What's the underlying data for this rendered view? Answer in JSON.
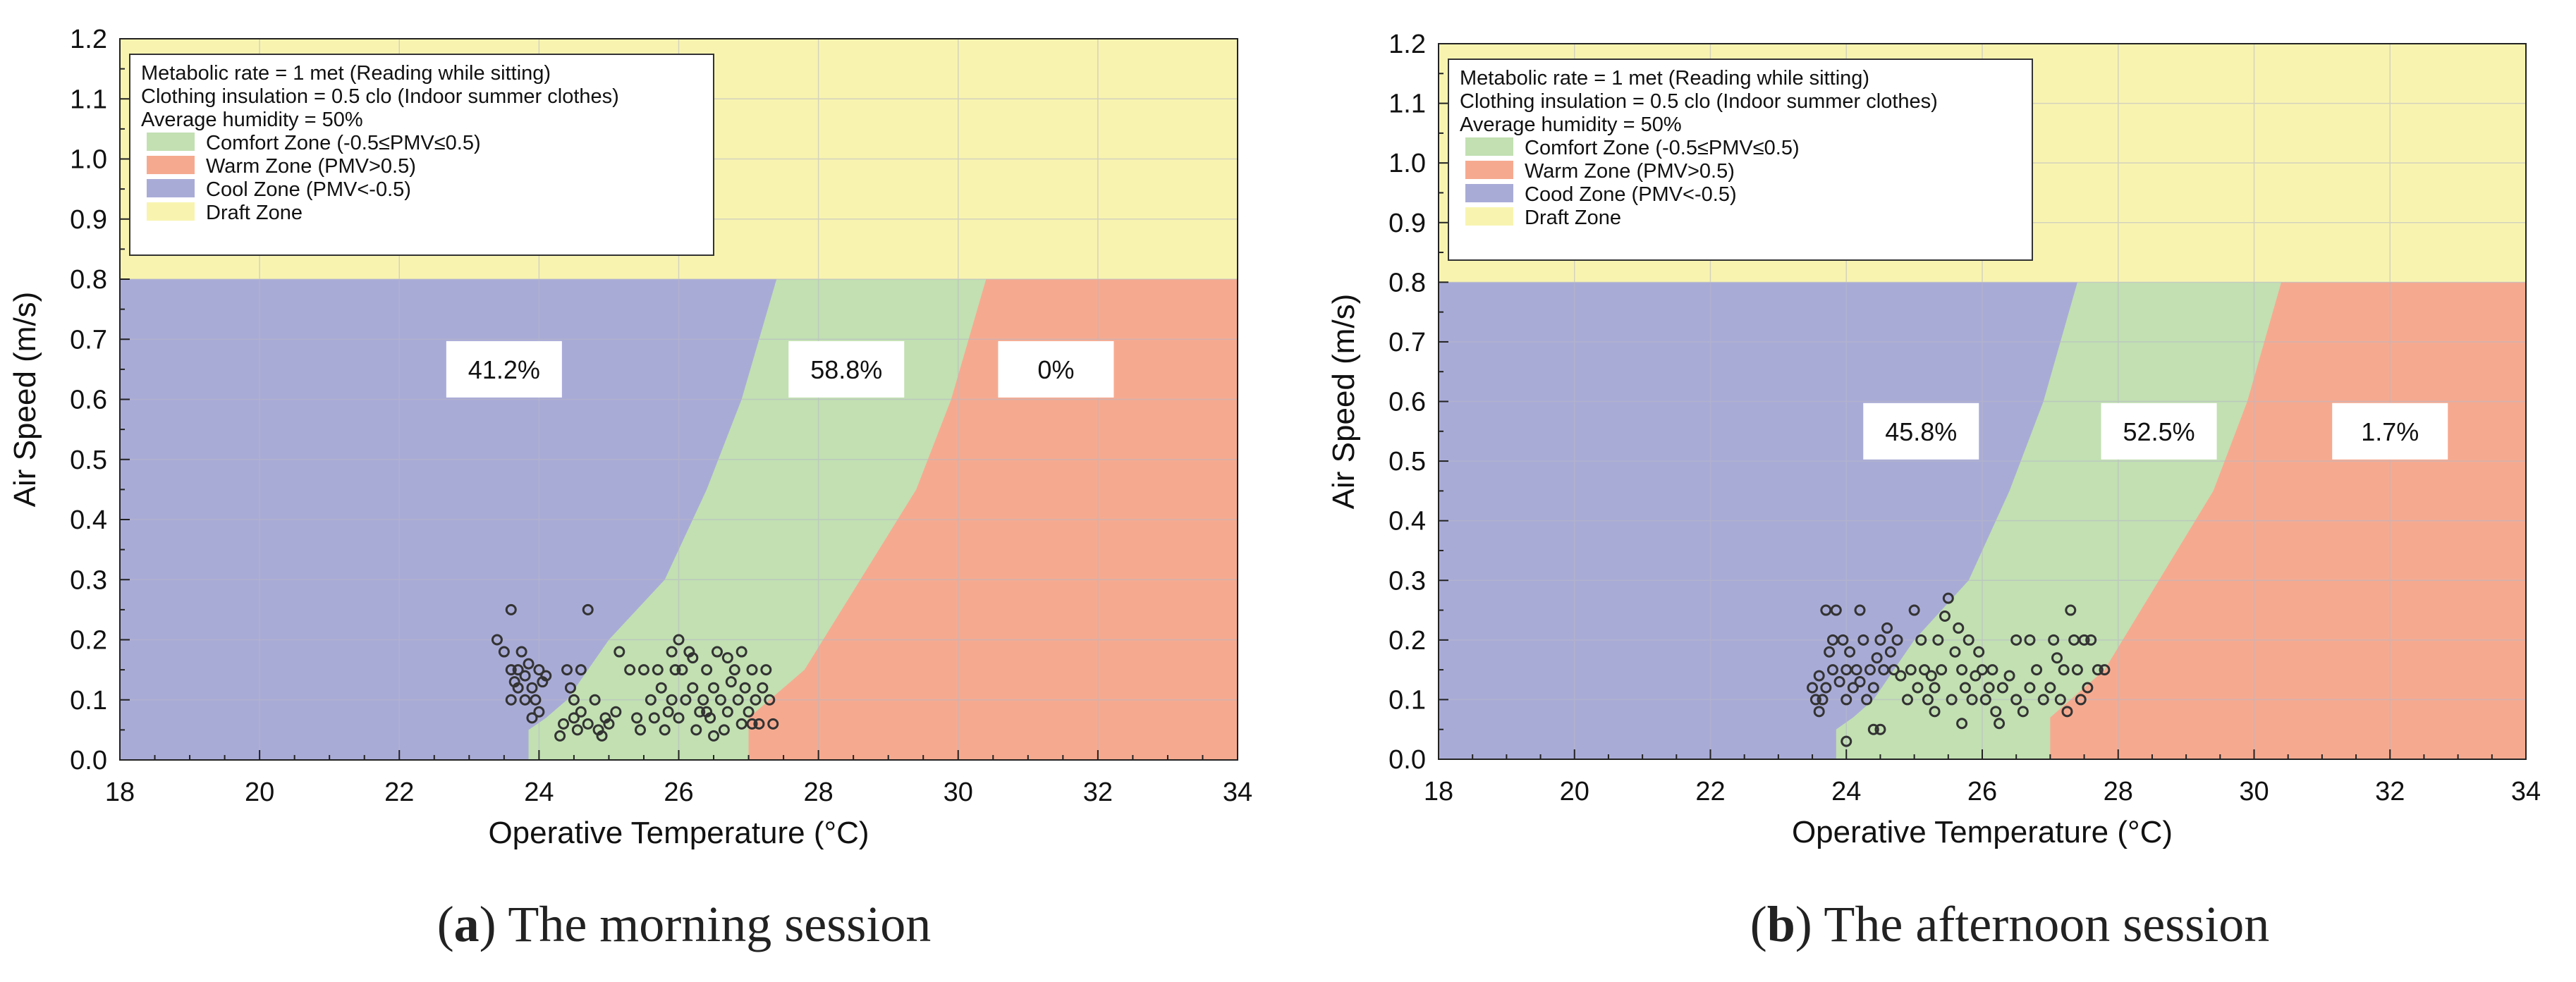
{
  "figure_caption": [
    {
      "letter": "a",
      "open": "(",
      "close": ")",
      "text": " The morning session"
    },
    {
      "letter": "b",
      "open": "(",
      "close": ")",
      "text": " The afternoon session"
    }
  ],
  "colors": {
    "cool": "#a9abd7",
    "comfort": "#c2e0b2",
    "warm": "#f5aa90",
    "draft": "#f8f4b0",
    "grid": "#b8b8c8",
    "point": "#333333"
  },
  "chart_data": [
    {
      "id": "morning",
      "type": "scatter",
      "title": "",
      "xlabel": "Operative Temperature (°C)",
      "ylabel": "Air Speed (m/s)",
      "xlim": [
        18,
        34
      ],
      "ylim": [
        0,
        1.2
      ],
      "xticks": [
        18,
        20,
        22,
        24,
        26,
        28,
        30,
        32,
        34
      ],
      "xtick_labels": [
        "18",
        "20",
        "22",
        "24",
        "26",
        "28",
        "30",
        "32",
        "34"
      ],
      "yticks": [
        0,
        0.1,
        0.2,
        0.3,
        0.4,
        0.5,
        0.6,
        0.7,
        0.8,
        0.9,
        1.0,
        1.1,
        1.2
      ],
      "ytick_labels": [
        "0.0",
        "0.1",
        "0.2",
        "0.3",
        "0.4",
        "0.5",
        "0.6",
        "0.7",
        "0.8",
        "0.9",
        "1.0",
        "1.1",
        "1.2"
      ],
      "grid": true,
      "legend_position": "top-left",
      "legend_notes": [
        "Metabolic rate = 1 met (Reading while sitting)",
        "Clothing insulation = 0.5 clo (Indoor summer clothes)",
        "Average humidity = 50%"
      ],
      "legend": [
        {
          "label": "Comfort Zone (-0.5≤PMV≤0.5)",
          "zone": "comfort"
        },
        {
          "label": "Warm Zone (PMV>0.5)",
          "zone": "warm"
        },
        {
          "label": "Cool Zone (PMV<-0.5)",
          "zone": "cool"
        },
        {
          "label": "Draft Zone",
          "zone": "draft"
        }
      ],
      "zone_limit_speed": 0.8,
      "cool_boundary": [
        [
          23.85,
          0
        ],
        [
          23.85,
          0.05
        ],
        [
          24.1,
          0.07
        ],
        [
          24.4,
          0.1
        ],
        [
          25,
          0.2
        ],
        [
          25.8,
          0.3
        ],
        [
          26.4,
          0.45
        ],
        [
          26.9,
          0.6
        ],
        [
          27.4,
          0.8
        ]
      ],
      "warm_boundary": [
        [
          27,
          0
        ],
        [
          27,
          0.07
        ],
        [
          27.8,
          0.15
        ],
        [
          28.6,
          0.3
        ],
        [
          29.4,
          0.45
        ],
        [
          29.9,
          0.6
        ],
        [
          30.4,
          0.8
        ]
      ],
      "zone_percentages": [
        {
          "label": "41.2%",
          "x": 23.5,
          "y": 0.65
        },
        {
          "label": "58.8%",
          "x": 28.4,
          "y": 0.65
        },
        {
          "label": "0%",
          "x": 31.4,
          "y": 0.65
        }
      ],
      "points": [
        [
          23.4,
          0.2
        ],
        [
          23.5,
          0.18
        ],
        [
          23.6,
          0.25
        ],
        [
          23.6,
          0.15
        ],
        [
          23.6,
          0.1
        ],
        [
          23.65,
          0.13
        ],
        [
          23.7,
          0.15
        ],
        [
          23.7,
          0.12
        ],
        [
          23.75,
          0.18
        ],
        [
          23.8,
          0.1
        ],
        [
          23.8,
          0.14
        ],
        [
          23.85,
          0.16
        ],
        [
          23.9,
          0.12
        ],
        [
          23.9,
          0.07
        ],
        [
          23.95,
          0.1
        ],
        [
          24,
          0.08
        ],
        [
          24,
          0.15
        ],
        [
          24.05,
          0.13
        ],
        [
          24.1,
          0.14
        ],
        [
          24.4,
          0.15
        ],
        [
          24.45,
          0.12
        ],
        [
          24.5,
          0.1
        ],
        [
          24.6,
          0.15
        ],
        [
          24.7,
          0.25
        ],
        [
          24.3,
          0.04
        ],
        [
          24.35,
          0.06
        ],
        [
          24.5,
          0.07
        ],
        [
          24.55,
          0.05
        ],
        [
          24.6,
          0.08
        ],
        [
          24.7,
          0.06
        ],
        [
          24.8,
          0.1
        ],
        [
          24.85,
          0.05
        ],
        [
          24.9,
          0.04
        ],
        [
          24.95,
          0.07
        ],
        [
          25,
          0.06
        ],
        [
          25.1,
          0.08
        ],
        [
          25.15,
          0.18
        ],
        [
          25.3,
          0.15
        ],
        [
          25.4,
          0.07
        ],
        [
          25.45,
          0.05
        ],
        [
          25.5,
          0.15
        ],
        [
          25.6,
          0.1
        ],
        [
          25.65,
          0.07
        ],
        [
          25.7,
          0.15
        ],
        [
          25.75,
          0.12
        ],
        [
          25.8,
          0.05
        ],
        [
          25.85,
          0.08
        ],
        [
          25.9,
          0.1
        ],
        [
          25.95,
          0.15
        ],
        [
          26,
          0.07
        ],
        [
          26,
          0.2
        ],
        [
          26.05,
          0.15
        ],
        [
          26.1,
          0.1
        ],
        [
          26.15,
          0.18
        ],
        [
          26.2,
          0.12
        ],
        [
          26.25,
          0.05
        ],
        [
          26.3,
          0.08
        ],
        [
          26.35,
          0.1
        ],
        [
          26.4,
          0.15
        ],
        [
          26.45,
          0.07
        ],
        [
          26.5,
          0.12
        ],
        [
          26.55,
          0.18
        ],
        [
          26.6,
          0.1
        ],
        [
          26.65,
          0.05
        ],
        [
          26.7,
          0.08
        ],
        [
          26.75,
          0.13
        ],
        [
          26.8,
          0.15
        ],
        [
          26.85,
          0.1
        ],
        [
          26.9,
          0.06
        ],
        [
          26.95,
          0.12
        ],
        [
          27,
          0.08
        ],
        [
          27.05,
          0.15
        ],
        [
          27.1,
          0.1
        ],
        [
          27.15,
          0.06
        ],
        [
          27.2,
          0.12
        ],
        [
          27.25,
          0.15
        ],
        [
          27.3,
          0.1
        ],
        [
          27.35,
          0.06
        ],
        [
          25.9,
          0.18
        ],
        [
          26.2,
          0.17
        ],
        [
          26.4,
          0.08
        ],
        [
          26.5,
          0.04
        ],
        [
          26.7,
          0.17
        ],
        [
          26.9,
          0.18
        ],
        [
          27.05,
          0.06
        ]
      ]
    },
    {
      "id": "afternoon",
      "type": "scatter",
      "title": "",
      "xlabel": "Operative Temperature (°C)",
      "ylabel": "Air Speed (m/s)",
      "xlim": [
        18,
        34
      ],
      "ylim": [
        0,
        1.2
      ],
      "xticks": [
        18,
        20,
        22,
        24,
        26,
        28,
        30,
        32,
        34
      ],
      "xtick_labels": [
        "18",
        "20",
        "22",
        "24",
        "26",
        "28",
        "30",
        "32",
        "34"
      ],
      "yticks": [
        0,
        0.1,
        0.2,
        0.3,
        0.4,
        0.5,
        0.6,
        0.7,
        0.8,
        0.9,
        1.0,
        1.1,
        1.2
      ],
      "ytick_labels": [
        "0.0",
        "0.1",
        "0.2",
        "0.3",
        "0.4",
        "0.5",
        "0.6",
        "0.7",
        "0.8",
        "0.9",
        "1.0",
        "1.1",
        "1.2"
      ],
      "grid": true,
      "legend_position": "top-left",
      "legend_notes": [
        "Metabolic rate = 1 met (Reading while sitting)",
        "Clothing insulation = 0.5 clo (Indoor summer clothes)",
        "Average humidity = 50%"
      ],
      "legend": [
        {
          "label": "Comfort Zone (-0.5≤PMV≤0.5)",
          "zone": "comfort"
        },
        {
          "label": "Warm Zone (PMV>0.5)",
          "zone": "warm"
        },
        {
          "label": "Cood Zone (PMV<-0.5)",
          "zone": "cool"
        },
        {
          "label": "Draft Zone",
          "zone": "draft"
        }
      ],
      "zone_limit_speed": 0.8,
      "cool_boundary": [
        [
          23.85,
          0
        ],
        [
          23.85,
          0.05
        ],
        [
          24.1,
          0.07
        ],
        [
          24.4,
          0.1
        ],
        [
          25,
          0.2
        ],
        [
          25.8,
          0.3
        ],
        [
          26.4,
          0.45
        ],
        [
          26.9,
          0.6
        ],
        [
          27.4,
          0.8
        ]
      ],
      "warm_boundary": [
        [
          27,
          0
        ],
        [
          27,
          0.07
        ],
        [
          27.8,
          0.15
        ],
        [
          28.6,
          0.3
        ],
        [
          29.4,
          0.45
        ],
        [
          29.9,
          0.6
        ],
        [
          30.4,
          0.8
        ]
      ],
      "zone_percentages": [
        {
          "label": "45.8%",
          "x": 25.1,
          "y": 0.55
        },
        {
          "label": "52.5%",
          "x": 28.6,
          "y": 0.55
        },
        {
          "label": "1.7%",
          "x": 32,
          "y": 0.55
        }
      ],
      "points": [
        [
          23.5,
          0.12
        ],
        [
          23.55,
          0.1
        ],
        [
          23.6,
          0.08
        ],
        [
          23.6,
          0.14
        ],
        [
          23.65,
          0.1
        ],
        [
          23.7,
          0.25
        ],
        [
          23.7,
          0.12
        ],
        [
          23.75,
          0.18
        ],
        [
          23.8,
          0.2
        ],
        [
          23.8,
          0.15
        ],
        [
          23.85,
          0.25
        ],
        [
          23.9,
          0.13
        ],
        [
          23.95,
          0.2
        ],
        [
          24,
          0.1
        ],
        [
          24,
          0.15
        ],
        [
          24.05,
          0.18
        ],
        [
          24.1,
          0.12
        ],
        [
          24.15,
          0.15
        ],
        [
          24.2,
          0.13
        ],
        [
          24.2,
          0.25
        ],
        [
          24.25,
          0.2
        ],
        [
          24.3,
          0.1
        ],
        [
          24.35,
          0.15
        ],
        [
          24.4,
          0.12
        ],
        [
          24.45,
          0.17
        ],
        [
          24.5,
          0.2
        ],
        [
          24.55,
          0.15
        ],
        [
          24.6,
          0.22
        ],
        [
          24.65,
          0.18
        ],
        [
          24.7,
          0.15
        ],
        [
          24.75,
          0.2
        ],
        [
          24.8,
          0.14
        ],
        [
          24.9,
          0.1
        ],
        [
          24.95,
          0.15
        ],
        [
          25,
          0.25
        ],
        [
          25.05,
          0.12
        ],
        [
          25.1,
          0.2
        ],
        [
          25.15,
          0.15
        ],
        [
          25.2,
          0.1
        ],
        [
          25.25,
          0.14
        ],
        [
          25.3,
          0.12
        ],
        [
          25.35,
          0.2
        ],
        [
          25.4,
          0.15
        ],
        [
          25.45,
          0.24
        ],
        [
          25.5,
          0.27
        ],
        [
          25.55,
          0.1
        ],
        [
          25.6,
          0.18
        ],
        [
          25.65,
          0.22
        ],
        [
          25.7,
          0.15
        ],
        [
          25.75,
          0.12
        ],
        [
          25.8,
          0.2
        ],
        [
          25.85,
          0.1
        ],
        [
          25.9,
          0.14
        ],
        [
          25.95,
          0.18
        ],
        [
          26,
          0.15
        ],
        [
          26.05,
          0.1
        ],
        [
          26.1,
          0.12
        ],
        [
          26.15,
          0.15
        ],
        [
          26.2,
          0.08
        ],
        [
          26.3,
          0.12
        ],
        [
          26.4,
          0.14
        ],
        [
          26.5,
          0.1
        ],
        [
          26.6,
          0.08
        ],
        [
          26.7,
          0.12
        ],
        [
          26.8,
          0.15
        ],
        [
          26.9,
          0.1
        ],
        [
          27,
          0.12
        ],
        [
          27.05,
          0.2
        ],
        [
          27.1,
          0.17
        ],
        [
          27.2,
          0.15
        ],
        [
          27.3,
          0.25
        ],
        [
          27.35,
          0.2
        ],
        [
          27.4,
          0.15
        ],
        [
          27.5,
          0.2
        ],
        [
          27.55,
          0.12
        ],
        [
          27.6,
          0.2
        ],
        [
          27.7,
          0.15
        ],
        [
          27.8,
          0.15
        ],
        [
          27.45,
          0.1
        ],
        [
          24,
          0.03
        ],
        [
          24.4,
          0.05
        ],
        [
          24.5,
          0.05
        ],
        [
          25.3,
          0.08
        ],
        [
          25.7,
          0.06
        ],
        [
          26.25,
          0.06
        ],
        [
          26.5,
          0.2
        ],
        [
          26.7,
          0.2
        ],
        [
          27.15,
          0.1
        ],
        [
          27.25,
          0.08
        ]
      ]
    }
  ]
}
